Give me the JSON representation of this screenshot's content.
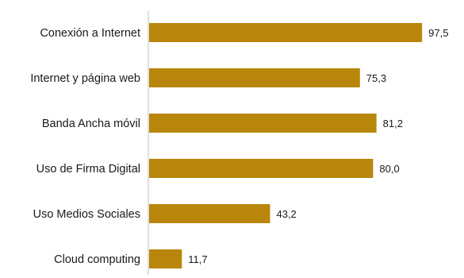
{
  "chart_data": {
    "type": "bar",
    "orientation": "horizontal",
    "categories": [
      "Conexión a Internet",
      "Internet y página web",
      "Banda Ancha móvil",
      "Uso de Firma Digital",
      "Uso Medios Sociales",
      "Cloud computing"
    ],
    "values": [
      97.5,
      75.3,
      81.2,
      80.0,
      43.2,
      11.7
    ],
    "value_labels": [
      "97,5",
      "75,3",
      "81,2",
      "80,0",
      "43,2",
      "11,7"
    ],
    "xlim": [
      0,
      100
    ],
    "grid": false,
    "legend": "none",
    "colors": {
      "bar": "#B8860B",
      "axis": "#bfbfbf",
      "text": "#1a1a1a"
    }
  }
}
